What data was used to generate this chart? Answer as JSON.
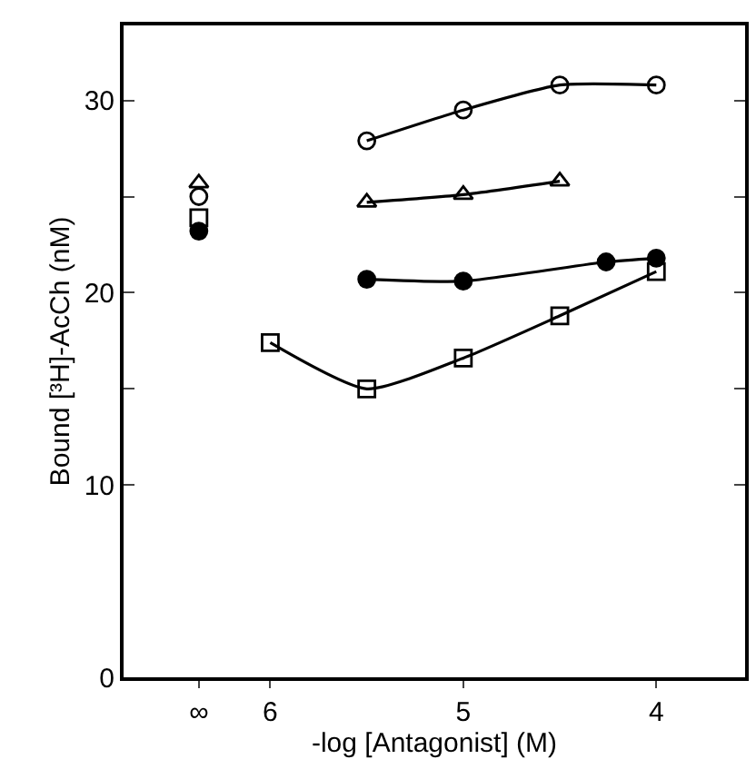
{
  "chart_data": {
    "type": "line",
    "xlabel": "-log [Antagonist] (M)",
    "ylabel": "Bound [³H]-AcCh (nM)",
    "xlim": [
      6.76,
      3.54
    ],
    "xticks": [
      {
        "value": 6.37,
        "label": "∞"
      },
      6,
      5,
      4
    ],
    "ylim": [
      0,
      33.9
    ],
    "yticks": [
      0,
      10,
      {
        "value": 15,
        "label": null
      },
      20,
      {
        "value": 25,
        "label": null
      },
      30
    ],
    "series": [
      {
        "color": "#000000",
        "marker": "circle-open",
        "x": [
          5.5,
          5.0,
          4.5,
          4.0
        ],
        "values": [
          27.9,
          29.5,
          30.8,
          30.8
        ]
      },
      {
        "color": "#000000",
        "marker": "triangle-up-open",
        "x": [
          5.5,
          5.0,
          4.5
        ],
        "values": [
          24.7,
          25.1,
          25.8
        ]
      },
      {
        "color": "#000000",
        "marker": "circle",
        "x": [
          5.5,
          5.0,
          4.26,
          4.0
        ],
        "values": [
          20.7,
          20.6,
          21.6,
          21.8
        ]
      },
      {
        "color": "#000000",
        "marker": "square-open",
        "x": [
          6.0,
          5.5,
          5.0,
          4.5,
          4.0
        ],
        "values": [
          17.4,
          15.0,
          16.6,
          18.8,
          21.1
        ]
      },
      {
        "type": "scatter",
        "color": "#000000",
        "marker": "circle-open",
        "x": [
          6.37
        ],
        "values": [
          25.0
        ]
      },
      {
        "type": "scatter",
        "color": "#000000",
        "marker": "triangle-up-open",
        "x": [
          6.37
        ],
        "values": [
          25.7
        ]
      },
      {
        "type": "scatter",
        "color": "#000000",
        "marker": "circle",
        "x": [
          6.37
        ],
        "values": [
          23.2
        ]
      },
      {
        "type": "scatter",
        "color": "#000000",
        "marker": "square-open",
        "x": [
          6.37
        ],
        "values": [
          23.9
        ]
      }
    ]
  }
}
